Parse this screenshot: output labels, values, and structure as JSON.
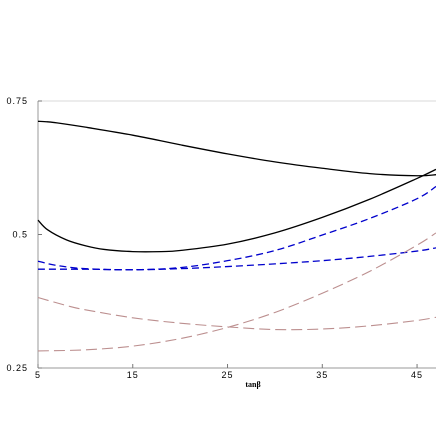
{
  "chart_data": {
    "type": "line",
    "title": "",
    "xlabel": "tanβ",
    "ylabel": "",
    "xlim": [
      5,
      47
    ],
    "ylim": [
      0.25,
      0.75
    ],
    "x_ticks": [
      5,
      15,
      25,
      35,
      45
    ],
    "x_tick_labels": [
      "5",
      "15",
      "25",
      "35",
      "45"
    ],
    "y_ticks": [
      0.25,
      0.5,
      0.75
    ],
    "y_tick_labels": [
      "0.25",
      "0.5",
      "0.75"
    ],
    "grid": false,
    "legend": "none",
    "series": [
      {
        "style": "solid",
        "color": "#000000",
        "points": [
          [
            5,
            0.712
          ],
          [
            6,
            0.711
          ],
          [
            7,
            0.709
          ],
          [
            10,
            0.701
          ],
          [
            15,
            0.686
          ],
          [
            20,
            0.668
          ],
          [
            25,
            0.651
          ],
          [
            30,
            0.636
          ],
          [
            35,
            0.624
          ],
          [
            40,
            0.614
          ],
          [
            45,
            0.61
          ],
          [
            47,
            0.612
          ]
        ]
      },
      {
        "style": "solid",
        "color": "#000000",
        "points": [
          [
            5,
            0.527
          ],
          [
            6,
            0.509
          ],
          [
            8,
            0.49
          ],
          [
            10,
            0.479
          ],
          [
            12,
            0.472
          ],
          [
            15,
            0.468
          ],
          [
            18,
            0.468
          ],
          [
            20,
            0.47
          ],
          [
            25,
            0.482
          ],
          [
            30,
            0.503
          ],
          [
            35,
            0.532
          ],
          [
            40,
            0.566
          ],
          [
            45,
            0.605
          ],
          [
            47,
            0.622
          ]
        ]
      },
      {
        "style": "dashed",
        "color": "#0000cc",
        "points": [
          [
            5,
            0.45
          ],
          [
            7,
            0.442
          ],
          [
            10,
            0.436
          ],
          [
            15,
            0.434
          ],
          [
            20,
            0.438
          ],
          [
            25,
            0.451
          ],
          [
            30,
            0.47
          ],
          [
            35,
            0.499
          ],
          [
            40,
            0.53
          ],
          [
            45,
            0.567
          ],
          [
            47,
            0.59
          ]
        ]
      },
      {
        "style": "dashed",
        "color": "#0000cc",
        "points": [
          [
            5,
            0.435
          ],
          [
            10,
            0.435
          ],
          [
            15,
            0.434
          ],
          [
            20,
            0.436
          ],
          [
            25,
            0.44
          ],
          [
            30,
            0.445
          ],
          [
            35,
            0.451
          ],
          [
            40,
            0.459
          ],
          [
            45,
            0.469
          ],
          [
            47,
            0.475
          ]
        ]
      },
      {
        "style": "longdash",
        "color": "#bc8f8f",
        "points": [
          [
            5,
            0.382
          ],
          [
            8,
            0.367
          ],
          [
            10,
            0.359
          ],
          [
            15,
            0.344
          ],
          [
            20,
            0.334
          ],
          [
            25,
            0.327
          ],
          [
            30,
            0.322
          ],
          [
            35,
            0.323
          ],
          [
            40,
            0.329
          ],
          [
            45,
            0.339
          ],
          [
            47,
            0.345
          ]
        ]
      },
      {
        "style": "longdash",
        "color": "#bc8f8f",
        "points": [
          [
            5,
            0.282
          ],
          [
            10,
            0.284
          ],
          [
            15,
            0.291
          ],
          [
            20,
            0.305
          ],
          [
            25,
            0.326
          ],
          [
            30,
            0.354
          ],
          [
            35,
            0.39
          ],
          [
            40,
            0.431
          ],
          [
            45,
            0.48
          ],
          [
            47,
            0.503
          ]
        ]
      }
    ]
  }
}
